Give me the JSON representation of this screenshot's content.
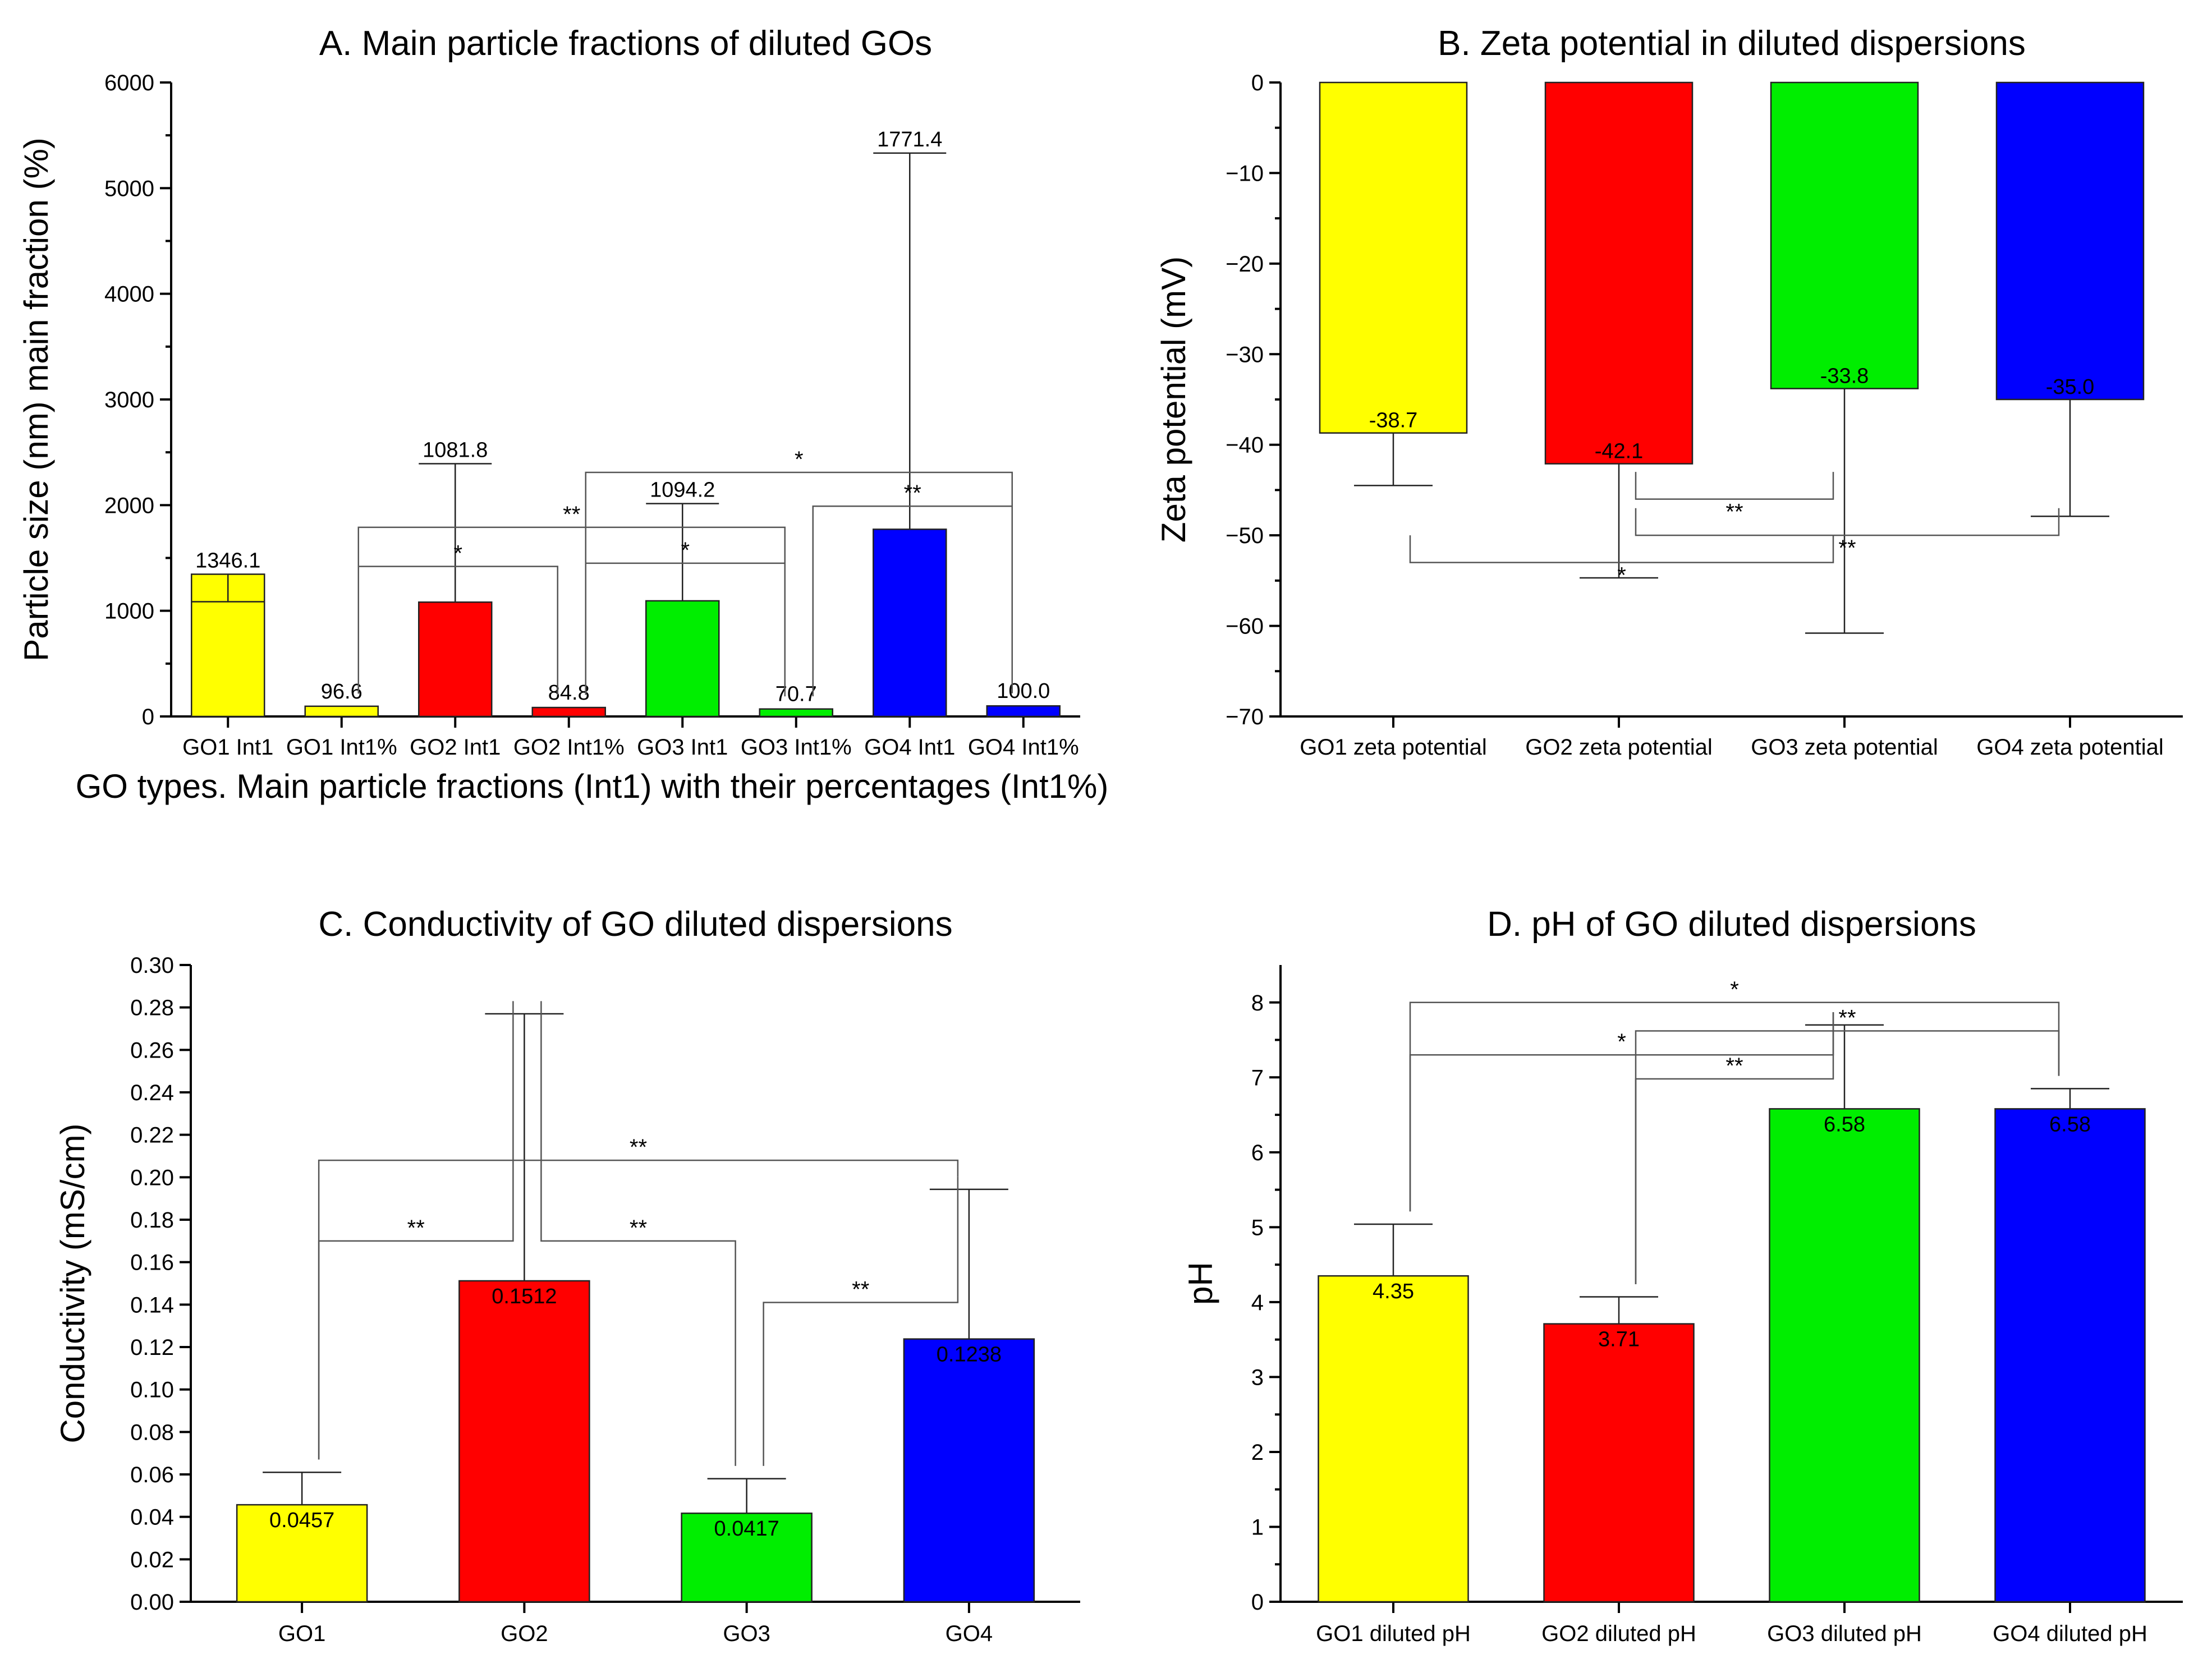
{
  "chart_data": [
    {
      "id": "A",
      "type": "bar",
      "title": "A. Main particle fractions of diluted GOs",
      "xlabel": "GO types. Main particle fractions (Int1) with their percentages (Int1%)",
      "ylabel": "Particle size (nm) main fraction (%)",
      "ylim": [
        0,
        6000
      ],
      "yticks": [
        0,
        1000,
        2000,
        3000,
        4000,
        5000,
        6000
      ],
      "ytick_labels": [
        "0",
        "1000",
        "2000",
        "3000",
        "4000",
        "5000",
        "6000"
      ],
      "categories": [
        "GO1 Int1",
        "GO1 Int1%",
        "GO2 Int1",
        "GO2 Int1%",
        "GO3 Int1",
        "GO3 Int1%",
        "GO4 Int1",
        "GO4 Int1%"
      ],
      "values": [
        1346.1,
        96.6,
        1081.8,
        84.8,
        1094.2,
        70.7,
        1771.4,
        100.0
      ],
      "value_labels": [
        "1346.1",
        "96.6",
        "1081.8",
        "84.8",
        "1094.2",
        "70.7",
        "1771.4",
        "100.0"
      ],
      "errors": [
        260,
        0,
        1310,
        0,
        920,
        0,
        3560,
        0
      ],
      "error_direction": [
        "down",
        "none",
        "up",
        "none",
        "up",
        "none",
        "up",
        "none"
      ],
      "colors": [
        "#ffff00",
        "#ffff00",
        "#ff0000",
        "#ff0000",
        "#00ee00",
        "#00ee00",
        "#0000ff",
        "#0000ff"
      ],
      "significance": [
        {
          "from": 1,
          "to": 3,
          "level": 1420,
          "label": "*"
        },
        {
          "from": 1,
          "to": 5,
          "level": 1790,
          "label": "**"
        },
        {
          "from": 3,
          "to": 5,
          "level": 1450,
          "label": "*"
        },
        {
          "from": 3,
          "to": 7,
          "level": 2310,
          "label": "*"
        },
        {
          "from": 5,
          "to": 7,
          "level": 1990,
          "label": "**"
        }
      ]
    },
    {
      "id": "B",
      "type": "bar",
      "title": "B. Zeta potential in diluted dispersions",
      "xlabel": "",
      "ylabel": "Zeta potential (mV)",
      "ylim": [
        -70,
        0
      ],
      "yticks": [
        0,
        -10,
        -20,
        -30,
        -40,
        -50,
        -60,
        -70
      ],
      "ytick_labels": [
        "0",
        "−10",
        "−20",
        "−30",
        "−40",
        "−50",
        "−60",
        "−70"
      ],
      "categories": [
        "GO1 zeta potential",
        "GO2 zeta potential",
        "GO3 zeta potential",
        "GO4 zeta potential"
      ],
      "values": [
        -38.7,
        -42.1,
        -33.8,
        -35.0
      ],
      "value_labels": [
        "-38.7",
        "-42.1",
        "-33.8",
        "-35.0"
      ],
      "errors": [
        5.8,
        12.6,
        27.0,
        12.9
      ],
      "error_direction": [
        "down",
        "down",
        "down",
        "down"
      ],
      "colors": [
        "#ffff00",
        "#ff0000",
        "#00ee00",
        "#0000ff"
      ],
      "significance": [
        {
          "from": 1,
          "to": 2,
          "level": -46,
          "label": "**"
        },
        {
          "from": 1,
          "to": 3,
          "level": -50,
          "label": "**"
        },
        {
          "from": 0,
          "to": 2,
          "level": -53,
          "label": "*"
        }
      ]
    },
    {
      "id": "C",
      "type": "bar",
      "title": "C. Conductivity of GO diluted dispersions",
      "xlabel": "",
      "ylabel": "Conductivity (mS/cm)",
      "ylim": [
        0,
        0.3
      ],
      "yticks": [
        0,
        0.02,
        0.04,
        0.06,
        0.08,
        0.1,
        0.12,
        0.14,
        0.16,
        0.18,
        0.2,
        0.22,
        0.24,
        0.26,
        0.28,
        0.3
      ],
      "ytick_labels": [
        "0.00",
        "0.02",
        "0.04",
        "0.06",
        "0.08",
        "0.10",
        "0.12",
        "0.14",
        "0.16",
        "0.18",
        "0.20",
        "0.22",
        "0.24",
        "0.26",
        "0.28",
        "0.30"
      ],
      "categories": [
        "GO1",
        "GO2",
        "GO3",
        "GO4"
      ],
      "values": [
        0.0457,
        0.1512,
        0.0417,
        0.1238
      ],
      "value_labels": [
        "0.0457",
        "0.1512",
        "0.0417",
        "0.1238"
      ],
      "errors": [
        0.0153,
        0.1258,
        0.0163,
        0.0705
      ],
      "error_direction": [
        "up",
        "up",
        "up",
        "up"
      ],
      "colors": [
        "#ffff00",
        "#ff0000",
        "#00ee00",
        "#0000ff"
      ],
      "significance": [
        {
          "from": 0,
          "to": 1,
          "level": 0.17,
          "label": "**"
        },
        {
          "from": 1,
          "to": 2,
          "level": 0.17,
          "label": "**"
        },
        {
          "from": 2,
          "to": 3,
          "level": 0.141,
          "label": "**"
        },
        {
          "from": 0,
          "to": 3,
          "level": 0.208,
          "label": "**"
        }
      ]
    },
    {
      "id": "D",
      "type": "bar",
      "title": "D. pH of GO diluted dispersions",
      "xlabel": "",
      "ylabel": "pH",
      "ylim": [
        0,
        8.5
      ],
      "yticks": [
        0,
        1,
        2,
        3,
        4,
        5,
        6,
        7,
        8
      ],
      "ytick_labels": [
        "0",
        "1",
        "2",
        "3",
        "4",
        "5",
        "6",
        "7",
        "8"
      ],
      "categories": [
        "GO1 diluted pH",
        "GO2 diluted pH",
        "GO3 diluted pH",
        "GO4 diluted pH"
      ],
      "values": [
        4.35,
        3.71,
        6.58,
        6.58
      ],
      "value_labels": [
        "4.35",
        "3.71",
        "6.58",
        "6.58"
      ],
      "errors": [
        0.69,
        0.36,
        1.12,
        0.27
      ],
      "error_direction": [
        "up",
        "up",
        "up",
        "up"
      ],
      "colors": [
        "#ffff00",
        "#ff0000",
        "#00ee00",
        "#0000ff"
      ],
      "significance": [
        {
          "from": 1,
          "to": 2,
          "level": 6.98,
          "label": "**"
        },
        {
          "from": 0,
          "to": 2,
          "level": 7.3,
          "label": "*"
        },
        {
          "from": 1,
          "to": 3,
          "level": 7.62,
          "label": "**"
        },
        {
          "from": 0,
          "to": 3,
          "level": 8.0,
          "label": "*"
        }
      ]
    }
  ]
}
